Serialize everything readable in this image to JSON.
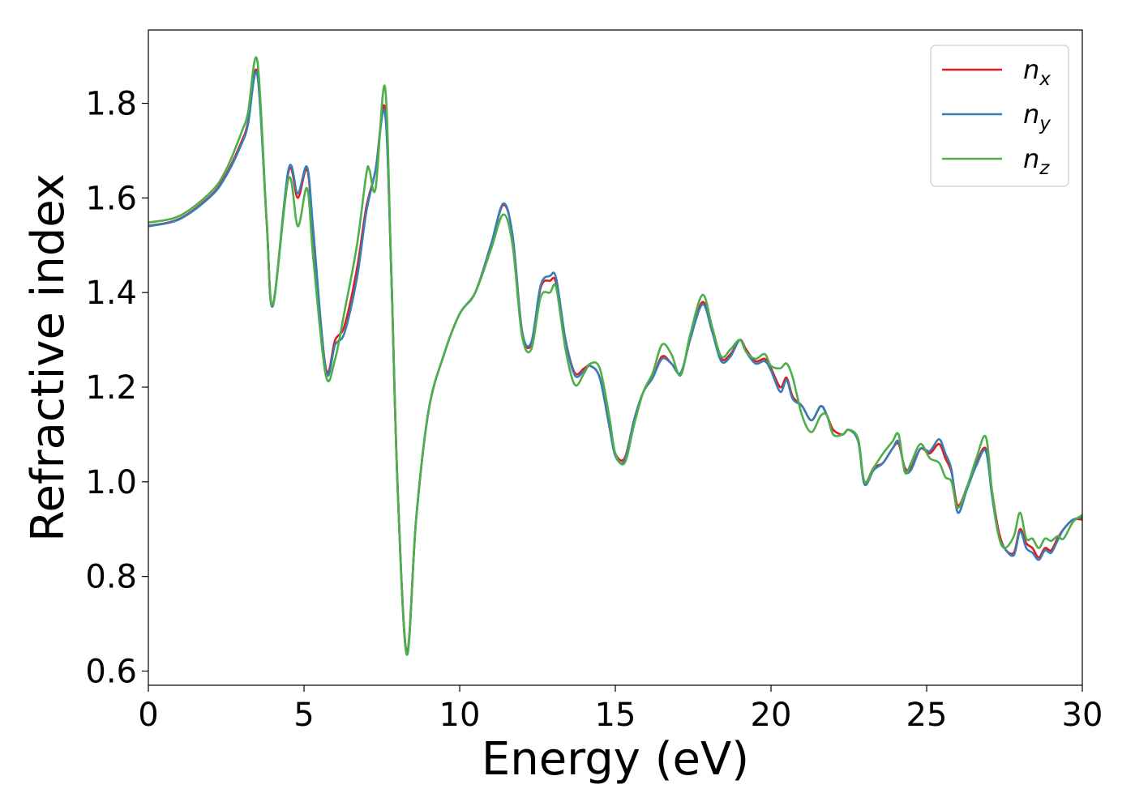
{
  "chart_data": {
    "type": "line",
    "xlabel": "Energy (eV)",
    "ylabel": "Refractive index",
    "xlim": [
      0,
      30
    ],
    "ylim": [
      0.57,
      1.955
    ],
    "xticks": [
      0,
      5,
      10,
      15,
      20,
      25,
      30
    ],
    "xtick_labels": [
      "0",
      "5",
      "10",
      "15",
      "20",
      "25",
      "30"
    ],
    "yticks": [
      0.6,
      0.8,
      1.0,
      1.2,
      1.4,
      1.6,
      1.8
    ],
    "ytick_labels": [
      "0.6",
      "0.8",
      "1.0",
      "1.2",
      "1.4",
      "1.6",
      "1.8"
    ],
    "grid": false,
    "legend_position": "top-right",
    "series": [
      {
        "name": "n",
        "sub": "x",
        "color": "#e41a1c",
        "x": [
          0,
          1,
          2,
          2.5,
          3,
          3.2,
          3.5,
          3.8,
          4.0,
          4.5,
          4.8,
          5.1,
          5.3,
          5.7,
          6.0,
          6.3,
          6.7,
          7.0,
          7.3,
          7.6,
          7.8,
          8.0,
          8.3,
          8.6,
          9.0,
          9.5,
          10.0,
          10.5,
          11.0,
          11.4,
          11.7,
          12.0,
          12.3,
          12.6,
          12.9,
          13.1,
          13.4,
          13.7,
          14.0,
          14.2,
          14.5,
          14.8,
          15.0,
          15.3,
          15.6,
          15.9,
          16.2,
          16.5,
          16.8,
          17.1,
          17.4,
          17.8,
          18.1,
          18.4,
          18.7,
          19.0,
          19.2,
          19.5,
          19.8,
          20.0,
          20.3,
          20.5,
          20.7,
          21.0,
          21.3,
          21.6,
          21.8,
          22.0,
          22.3,
          22.5,
          22.8,
          23.0,
          23.3,
          23.6,
          23.9,
          24.1,
          24.3,
          24.5,
          24.8,
          25.1,
          25.4,
          25.6,
          25.8,
          26.0,
          26.3,
          26.6,
          26.9,
          27.1,
          27.3,
          27.5,
          27.8,
          28.0,
          28.2,
          28.4,
          28.6,
          28.8,
          29.0,
          29.2,
          29.4,
          29.7,
          30.0
        ],
        "y": [
          1.541,
          1.556,
          1.605,
          1.65,
          1.72,
          1.76,
          1.865,
          1.55,
          1.375,
          1.655,
          1.6,
          1.66,
          1.52,
          1.24,
          1.3,
          1.33,
          1.45,
          1.58,
          1.66,
          1.79,
          1.45,
          1.0,
          0.64,
          0.92,
          1.15,
          1.27,
          1.355,
          1.4,
          1.5,
          1.585,
          1.52,
          1.32,
          1.29,
          1.41,
          1.425,
          1.42,
          1.3,
          1.23,
          1.24,
          1.245,
          1.22,
          1.12,
          1.06,
          1.05,
          1.13,
          1.19,
          1.22,
          1.265,
          1.25,
          1.23,
          1.3,
          1.38,
          1.32,
          1.26,
          1.27,
          1.3,
          1.28,
          1.255,
          1.26,
          1.24,
          1.2,
          1.22,
          1.18,
          1.16,
          1.13,
          1.16,
          1.14,
          1.11,
          1.1,
          1.11,
          1.09,
          1.0,
          1.03,
          1.04,
          1.07,
          1.08,
          1.03,
          1.03,
          1.07,
          1.06,
          1.08,
          1.05,
          1.02,
          0.95,
          0.99,
          1.04,
          1.07,
          0.98,
          0.9,
          0.86,
          0.85,
          0.9,
          0.87,
          0.86,
          0.84,
          0.86,
          0.855,
          0.88,
          0.9,
          0.92,
          0.92
        ]
      },
      {
        "name": "n",
        "sub": "y",
        "color": "#377eb8",
        "x": [
          0,
          1,
          2,
          2.5,
          3,
          3.2,
          3.5,
          3.8,
          4.0,
          4.5,
          4.8,
          5.1,
          5.3,
          5.7,
          6.0,
          6.3,
          6.7,
          7.0,
          7.3,
          7.6,
          7.8,
          8.0,
          8.3,
          8.6,
          9.0,
          9.5,
          10.0,
          10.5,
          11.0,
          11.4,
          11.7,
          12.0,
          12.3,
          12.6,
          12.9,
          13.1,
          13.4,
          13.7,
          14.0,
          14.2,
          14.5,
          14.8,
          15.0,
          15.3,
          15.6,
          15.9,
          16.2,
          16.5,
          16.8,
          17.1,
          17.4,
          17.8,
          18.1,
          18.4,
          18.7,
          19.0,
          19.2,
          19.5,
          19.8,
          20.0,
          20.3,
          20.5,
          20.7,
          21.0,
          21.3,
          21.6,
          21.8,
          22.0,
          22.3,
          22.5,
          22.8,
          23.0,
          23.3,
          23.6,
          23.9,
          24.1,
          24.3,
          24.5,
          24.8,
          25.1,
          25.4,
          25.6,
          25.8,
          26.0,
          26.3,
          26.6,
          26.9,
          27.1,
          27.3,
          27.5,
          27.8,
          28.0,
          28.2,
          28.4,
          28.6,
          28.8,
          29.0,
          29.2,
          29.4,
          29.7,
          30.0
        ],
        "y": [
          1.54,
          1.555,
          1.603,
          1.647,
          1.715,
          1.755,
          1.86,
          1.55,
          1.372,
          1.66,
          1.61,
          1.665,
          1.53,
          1.235,
          1.29,
          1.315,
          1.43,
          1.57,
          1.66,
          1.78,
          1.45,
          1.0,
          0.635,
          0.92,
          1.15,
          1.27,
          1.355,
          1.4,
          1.5,
          1.588,
          1.52,
          1.32,
          1.295,
          1.415,
          1.435,
          1.43,
          1.3,
          1.225,
          1.235,
          1.245,
          1.22,
          1.12,
          1.055,
          1.045,
          1.13,
          1.19,
          1.22,
          1.26,
          1.25,
          1.23,
          1.3,
          1.375,
          1.32,
          1.255,
          1.265,
          1.3,
          1.275,
          1.25,
          1.255,
          1.235,
          1.19,
          1.215,
          1.175,
          1.16,
          1.13,
          1.16,
          1.14,
          1.1,
          1.1,
          1.11,
          1.085,
          0.995,
          1.025,
          1.04,
          1.07,
          1.085,
          1.025,
          1.025,
          1.07,
          1.065,
          1.09,
          1.06,
          1.025,
          0.935,
          0.985,
          1.035,
          1.065,
          0.97,
          0.89,
          0.86,
          0.845,
          0.895,
          0.86,
          0.85,
          0.835,
          0.855,
          0.85,
          0.875,
          0.9,
          0.92,
          0.925
        ]
      },
      {
        "name": "n",
        "sub": "z",
        "color": "#4daf4a",
        "x": [
          0,
          1,
          2,
          2.5,
          3,
          3.2,
          3.5,
          3.8,
          4.0,
          4.5,
          4.8,
          5.1,
          5.3,
          5.7,
          6.0,
          6.3,
          6.7,
          7.0,
          7.1,
          7.3,
          7.6,
          7.8,
          8.0,
          8.3,
          8.6,
          9.0,
          9.5,
          10.0,
          10.5,
          11.0,
          11.4,
          11.7,
          12.0,
          12.3,
          12.6,
          12.9,
          13.1,
          13.4,
          13.7,
          14.0,
          14.2,
          14.5,
          14.8,
          15.0,
          15.3,
          15.6,
          15.9,
          16.2,
          16.5,
          16.8,
          17.1,
          17.4,
          17.8,
          18.1,
          18.4,
          18.7,
          19.0,
          19.2,
          19.5,
          19.8,
          20.0,
          20.3,
          20.5,
          20.7,
          21.0,
          21.3,
          21.6,
          21.8,
          22.0,
          22.3,
          22.5,
          22.8,
          23.0,
          23.3,
          23.6,
          23.9,
          24.1,
          24.3,
          24.5,
          24.8,
          25.1,
          25.4,
          25.6,
          25.8,
          26.0,
          26.3,
          26.6,
          26.9,
          27.1,
          27.3,
          27.5,
          27.8,
          28.0,
          28.2,
          28.4,
          28.6,
          28.8,
          29.0,
          29.2,
          29.4,
          29.7,
          30.0
        ],
        "y": [
          1.548,
          1.562,
          1.612,
          1.66,
          1.74,
          1.78,
          1.89,
          1.55,
          1.375,
          1.64,
          1.54,
          1.62,
          1.47,
          1.225,
          1.26,
          1.36,
          1.5,
          1.65,
          1.66,
          1.62,
          1.835,
          1.45,
          1.0,
          0.635,
          0.92,
          1.15,
          1.27,
          1.355,
          1.4,
          1.49,
          1.565,
          1.5,
          1.31,
          1.28,
          1.39,
          1.4,
          1.41,
          1.28,
          1.205,
          1.23,
          1.25,
          1.24,
          1.14,
          1.06,
          1.04,
          1.12,
          1.19,
          1.23,
          1.29,
          1.27,
          1.225,
          1.31,
          1.395,
          1.33,
          1.265,
          1.28,
          1.3,
          1.275,
          1.26,
          1.27,
          1.245,
          1.24,
          1.25,
          1.22,
          1.14,
          1.105,
          1.14,
          1.14,
          1.1,
          1.1,
          1.11,
          1.09,
          1.0,
          1.03,
          1.06,
          1.085,
          1.1,
          1.02,
          1.04,
          1.08,
          1.05,
          1.04,
          1.01,
          1.0,
          0.945,
          0.99,
          1.05,
          1.095,
          0.98,
          0.89,
          0.86,
          0.885,
          0.935,
          0.88,
          0.88,
          0.86,
          0.88,
          0.875,
          0.885,
          0.88,
          0.915,
          0.93
        ]
      }
    ]
  }
}
